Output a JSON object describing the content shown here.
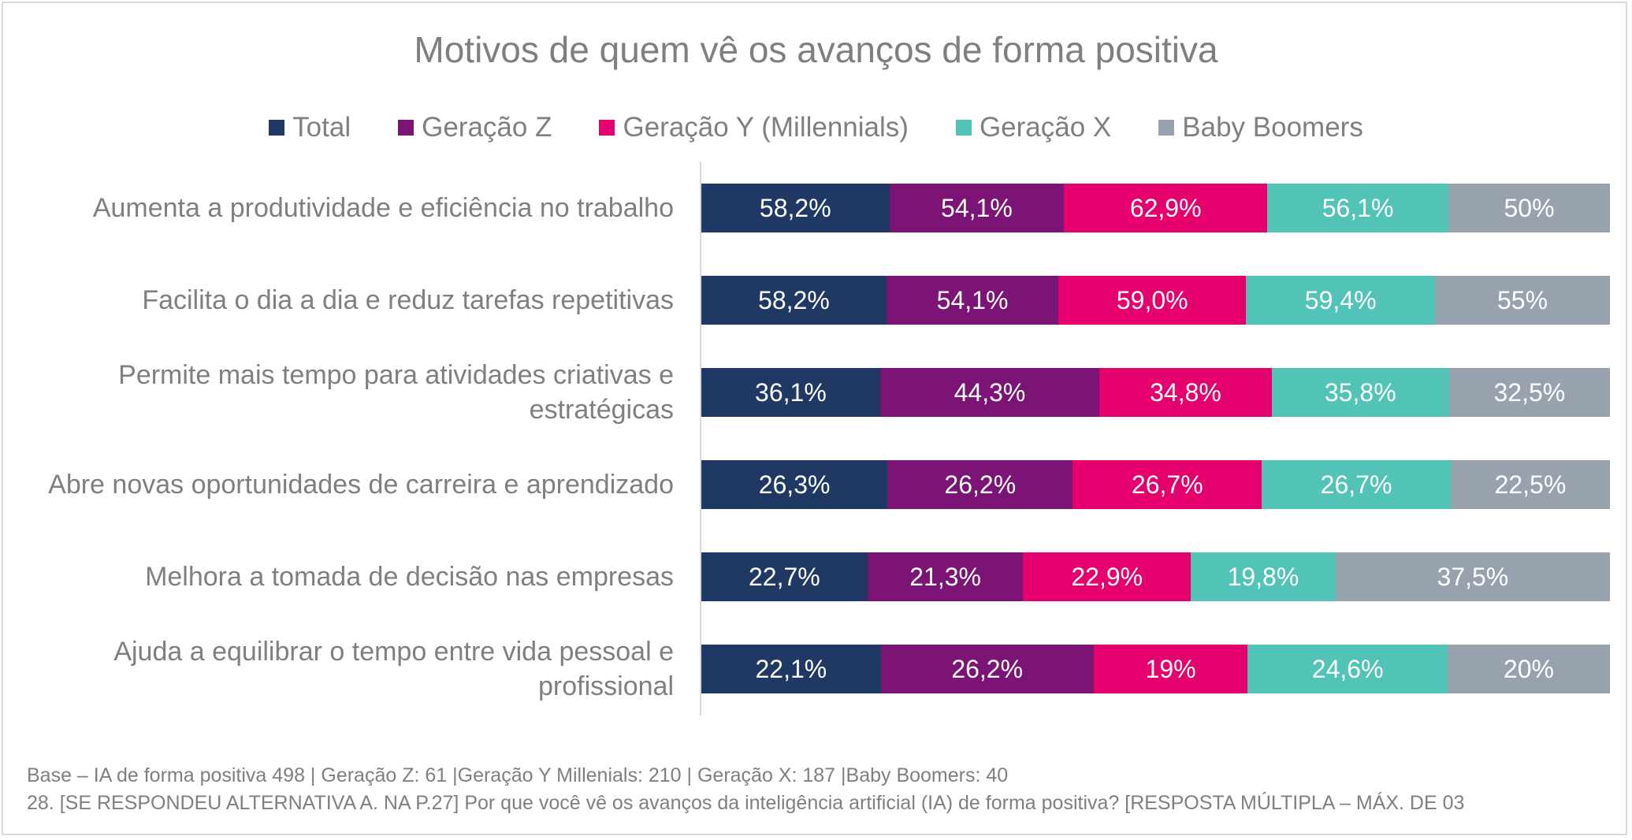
{
  "chart_data": {
    "type": "bar",
    "stacked": true,
    "orientation": "horizontal",
    "title": "Motivos de quem vê os avanços de forma positiva",
    "legend_position": "top",
    "categories": [
      "Aumenta a produtividade e eficiência no trabalho",
      "Facilita o dia a dia e reduz tarefas repetitivas",
      "Permite mais tempo para atividades criativas e estratégicas",
      "Abre novas oportunidades de carreira e aprendizado",
      "Melhora a tomada de decisão nas empresas",
      "Ajuda a equilibrar o tempo entre vida pessoal e profissional"
    ],
    "series": [
      {
        "name": "Total",
        "color": "#203864",
        "values": [
          58.2,
          58.2,
          36.1,
          26.3,
          22.7,
          22.1
        ],
        "labels": [
          "58,2%",
          "58,2%",
          "36,1%",
          "26,3%",
          "22,7%",
          "22,1%"
        ]
      },
      {
        "name": "Geração Z",
        "color": "#7b1474",
        "values": [
          54.1,
          54.1,
          44.3,
          26.2,
          21.3,
          26.2
        ],
        "labels": [
          "54,1%",
          "54,1%",
          "44,3%",
          "26,2%",
          "21,3%",
          "26,2%"
        ]
      },
      {
        "name": "Geração Y (Millennials)",
        "color": "#e6006e",
        "values": [
          62.9,
          59.0,
          34.8,
          26.7,
          22.9,
          19
        ],
        "labels": [
          "62,9%",
          "59,0%",
          "34,8%",
          "26,7%",
          "22,9%",
          "19%"
        ]
      },
      {
        "name": "Geração X",
        "color": "#52c3b7",
        "values": [
          56.1,
          59.4,
          35.8,
          26.7,
          19.8,
          24.6
        ],
        "labels": [
          "56,1%",
          "59,4%",
          "35,8%",
          "26,7%",
          "19,8%",
          "24,6%"
        ]
      },
      {
        "name": "Baby Boomers",
        "color": "#98a2ae",
        "values": [
          50,
          55,
          32.5,
          22.5,
          37.5,
          20
        ],
        "labels": [
          "50%",
          "55%",
          "32,5%",
          "22,5%",
          "37,5%",
          "20%"
        ]
      }
    ],
    "grid": false
  },
  "footnotes": [
    "Base – IA de forma positiva 498 | Geração Z: 61 |Geração Y Millenials: 210 | Geração X: 187 |Baby Boomers: 40",
    "28. [SE RESPONDEU ALTERNATIVA A. NA P.27] Por que você vê os avanços da inteligência artificial (IA) de forma positiva? [RESPOSTA MÚLTIPLA – MÁX. DE 03"
  ]
}
